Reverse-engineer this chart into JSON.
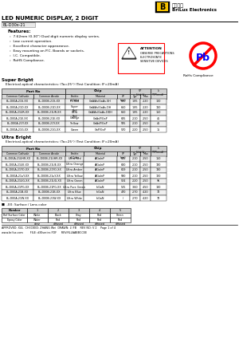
{
  "title": "LED NUMERIC DISPLAY, 2 DIGIT",
  "part_number": "BL-D30x-21",
  "company_cn": "百流光电",
  "company_en": "BriLux Electronics",
  "features": [
    "7.62mm (0.30\") Dual digit numeric display series.",
    "Low current operation.",
    "Excellent character appearance.",
    "Easy mounting on P.C. Boards or sockets.",
    "I.C. Compatible.",
    "RoHS Compliance."
  ],
  "super_bright_header": "Super Bright",
  "super_bright_condition": "    Electrical-optical characteristics: (Ta=25°) (Test Condition: IF=20mA)",
  "super_bright_rows": [
    [
      "BL-D00A-21S-XX",
      "BL-D00B-21S-XX",
      "Hi Red",
      "GaAlAs/GaAs.SH",
      "660",
      "1.85",
      "2.20",
      "100"
    ],
    [
      "BL-D00A-21D-XX",
      "BL-D00B-21D-XX",
      "Super\nRed",
      "GaAlAs/GaAs.DH",
      "660",
      "1.85",
      "2.20",
      "110"
    ],
    [
      "BL-D00A-21UR-XX",
      "BL-D00B-21UR-XX",
      "Ultra\nRed",
      "GaAlAs/GaAs.DDH",
      "660",
      "1.85",
      "2.20",
      "150"
    ],
    [
      "BL-D00A-21E-XX",
      "BL-D00B-21E-XX",
      "Orange",
      "GaAsP/GaP",
      "635",
      "2.10",
      "2.50",
      "45"
    ],
    [
      "BL-D00A-21Y-XX",
      "BL-D00B-21Y-XX",
      "Yellow",
      "GaAsP/GaP",
      "585",
      "2.10",
      "2.50",
      "45"
    ],
    [
      "BL-D00A-21G-XX",
      "BL-D00B-21G-XX",
      "Green",
      "GaP/GaP",
      "570",
      "2.20",
      "2.50",
      "15"
    ]
  ],
  "ultra_bright_header": "Ultra Bright",
  "ultra_bright_condition": "    Electrical-optical characteristics: (Ta=25°) (Test Condition: IF=20mA)",
  "ultra_bright_rows": [
    [
      "BL-D00A-21UHR-XX",
      "BL-D00B-21UHR-XX",
      "Ultra Red",
      "AlGaInP",
      "645",
      "2.10",
      "2.50",
      "150"
    ],
    [
      "BL-D00A-21UE-XX",
      "BL-D00B-21UE-XX",
      "Ultra Orange",
      "AlGaInP",
      "630",
      "2.10",
      "2.50",
      "130"
    ],
    [
      "BL-D00A-21YO-XX",
      "BL-D00B-21YO-XX",
      "Ultra Amber",
      "AlGaInP",
      "619",
      "2.10",
      "2.50",
      "130"
    ],
    [
      "BL-D00A-21uY-XX",
      "BL-D00B-21uY-XX",
      "Ultra Yellow",
      "AlGaInP",
      "590",
      "2.10",
      "2.50",
      "120"
    ],
    [
      "BL-D00A-21UG-XX",
      "BL-D00B-21UG-XX",
      "Ultra Green",
      "AlGaInP",
      "574",
      "2.20",
      "2.50",
      "96"
    ],
    [
      "BL-D00A-21PG-XX",
      "BL-D00B-21PG-XX",
      "Ultra Pure Green",
      "InGaN",
      "525",
      "3.60",
      "4.50",
      "180"
    ],
    [
      "BL-D00A-21B-XX",
      "BL-D00B-21B-XX",
      "Ultra Blue",
      "InGaN",
      "470",
      "2.70",
      "4.20",
      "70"
    ],
    [
      "BL-D00A-21W-XX",
      "BL-D00B-21W-XX",
      "Ultra White",
      "InGaN",
      "/",
      "2.70",
      "4.20",
      "70"
    ]
  ],
  "suffix_note": "■  -XX: Surface / Lens color",
  "suffix_header": [
    "Number",
    "1",
    "2",
    "3",
    "4",
    "5"
  ],
  "suffix_rows": [
    [
      "Ref Surface Color",
      "White",
      "Black",
      "Gray",
      "Red",
      "Green"
    ],
    [
      "Epoxy Color",
      "Water\nclear",
      "Red\ndiffused",
      "Red\ndiffused",
      "Red\ndiffused",
      "Red\ndiffused"
    ]
  ],
  "footer1": "APPROVED: XUL  CHECKED: ZHANG Wei  DRAWN: LI FB    REV NO: V 2    Page 1 of 4",
  "footer2": "www.brilux.com        FILE: d30series.PDF     REV:RLLAABBCCEE",
  "bg_color": "#ffffff"
}
